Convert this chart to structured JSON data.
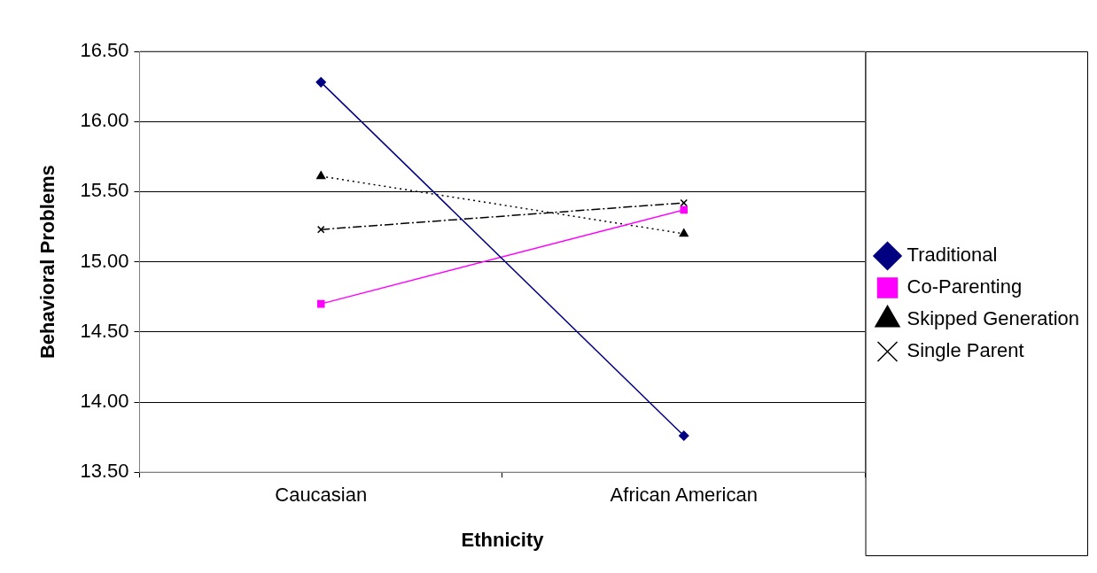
{
  "chart_data": {
    "type": "line",
    "xlabel": "Ethnicity",
    "ylabel": "Behavioral Problems",
    "categories": [
      "Caucasian",
      "African American"
    ],
    "series": [
      {
        "name": "Traditional",
        "color": "#000080",
        "values": [
          16.28,
          13.76
        ],
        "marker": "diamond",
        "line_style": "solid"
      },
      {
        "name": "Co-Parenting",
        "color": "#ff00ff",
        "values": [
          14.7,
          15.37
        ],
        "marker": "square",
        "line_style": "solid"
      },
      {
        "name": "Skipped Generation",
        "color": "#000000",
        "values": [
          15.61,
          15.2
        ],
        "marker": "triangle",
        "line_style": "dotted"
      },
      {
        "name": "Single Parent",
        "color": "#000000",
        "values": [
          15.23,
          15.42
        ],
        "marker": "cross",
        "line_style": "dashed"
      }
    ],
    "ylim": [
      13.5,
      16.5
    ],
    "yticks": [
      {
        "value": 13.5,
        "label": "13.50"
      },
      {
        "value": 14,
        "label": "14.00"
      },
      {
        "value": 14.5,
        "label": "14.50"
      },
      {
        "value": 15,
        "label": "15.00"
      },
      {
        "value": 15.5,
        "label": "15.50"
      },
      {
        "value": 16,
        "label": "16.00"
      },
      {
        "value": 16.5,
        "label": "16.50"
      }
    ],
    "grid": "y",
    "legend": "right"
  }
}
